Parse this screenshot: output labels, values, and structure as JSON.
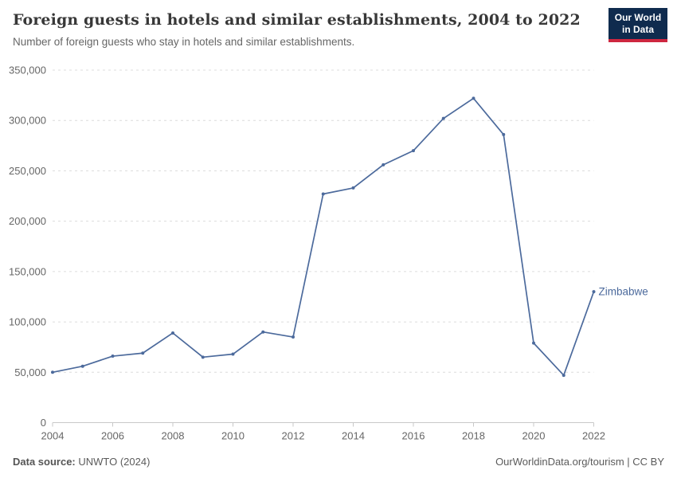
{
  "header": {
    "title": "Foreign guests in hotels and similar establishments, 2004 to 2022",
    "subtitle": "Number of foreign guests who stay in hotels and similar establishments.",
    "logo": {
      "line1": "Our World",
      "line2": "in Data",
      "bg_color": "#0F2B4E",
      "accent_color": "#CE2740"
    }
  },
  "footer": {
    "source_label": "Data source:",
    "source_value": "UNWTO (2024)",
    "credit": "OurWorldinData.org/tourism | CC BY"
  },
  "chart_data": {
    "type": "line",
    "title": "Foreign guests in hotels and similar establishments, 2004 to 2022",
    "x": [
      2004,
      2005,
      2006,
      2007,
      2008,
      2009,
      2010,
      2011,
      2012,
      2013,
      2014,
      2015,
      2016,
      2017,
      2018,
      2019,
      2020,
      2021,
      2022
    ],
    "series": [
      {
        "name": "Zimbabwe",
        "color": "#4C6A9C",
        "values": [
          50000,
          56000,
          66000,
          69000,
          89000,
          65000,
          68000,
          90000,
          85000,
          227000,
          233000,
          256000,
          270000,
          302000,
          322000,
          286000,
          79000,
          47000,
          130000
        ]
      }
    ],
    "xlabel": "",
    "ylabel": "",
    "ylim": [
      0,
      350000
    ],
    "y_ticks": [
      0,
      50000,
      100000,
      150000,
      200000,
      250000,
      300000,
      350000
    ],
    "x_tick_years": [
      2004,
      2006,
      2008,
      2010,
      2012,
      2014,
      2016,
      2018,
      2020,
      2022
    ],
    "grid": "horizontal-dashed",
    "legend_position": "end-of-line-label",
    "colors": {
      "gridline": "#dcdcdc",
      "axis": "#c8c8c8",
      "tick_label": "#666666"
    }
  }
}
